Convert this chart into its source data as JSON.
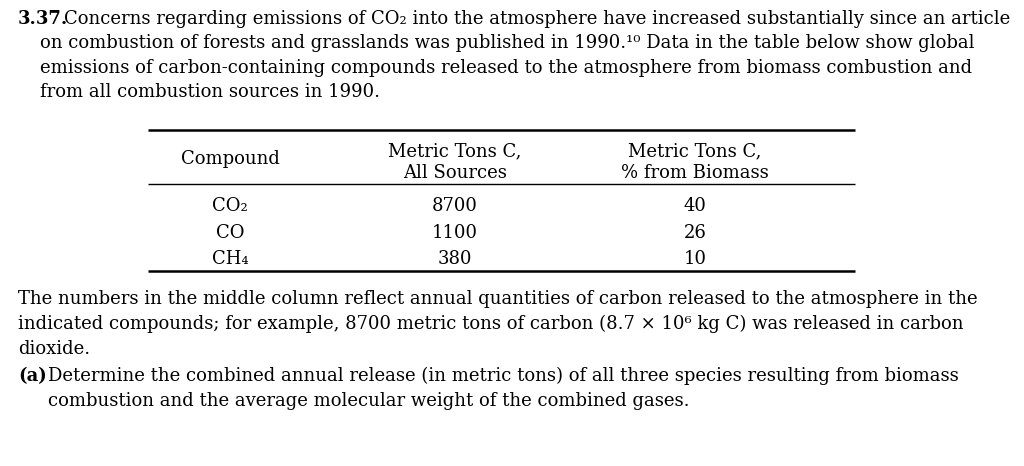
{
  "background_color": "#ffffff",
  "problem_number": "3.37.",
  "intro_text_lines": [
    "Concerns regarding emissions of CO₂ into the atmosphere have increased substantially since an article",
    "on combustion of forests and grasslands was published in 1990.¹⁰ Data in the table below show global",
    "emissions of carbon-containing compounds released to the atmosphere from biomass combustion and",
    "from all combustion sources in 1990."
  ],
  "table_col_headers_line1": [
    "",
    "Metric Tons C,",
    "Metric Tons C,"
  ],
  "table_col_headers_line2": [
    "Compound",
    "All Sources",
    "% from Biomass"
  ],
  "table_rows": [
    [
      "CO₂",
      "8700",
      "40"
    ],
    [
      "CO",
      "1100",
      "26"
    ],
    [
      "CH₄",
      "380",
      "10"
    ]
  ],
  "footer_text_lines": [
    "The numbers in the middle column reflect annual quantities of carbon released to the atmosphere in the",
    "indicated compounds; for example, 8700 metric tons of carbon (8.7 × 10⁶ kg C) was released in carbon",
    "dioxide."
  ],
  "part_a_label": "(a)",
  "part_a_lines": [
    "Determine the combined annual release (in metric tons) of all three species resulting from biomass",
    "combustion and the average molecular weight of the combined gases."
  ],
  "font_size_body": 13.0,
  "font_size_table": 13.0,
  "font_family": "DejaVu Serif",
  "figwidth": 10.24,
  "figheight": 4.66,
  "dpi": 100
}
